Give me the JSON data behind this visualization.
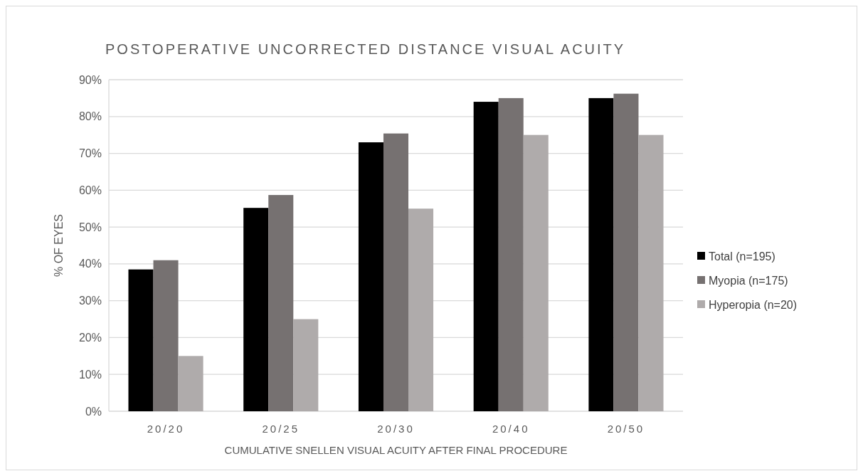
{
  "chart_data": {
    "type": "bar",
    "title": "POSTOPERATIVE UNCORRECTED DISTANCE VISUAL ACUITY",
    "xlabel": "CUMULATIVE SNELLEN VISUAL ACUITY AFTER FINAL PROCEDURE",
    "ylabel": "% OF EYES",
    "categories": [
      "20/20",
      "20/25",
      "20/30",
      "20/40",
      "20/50"
    ],
    "series": [
      {
        "name": "Total (n=195)",
        "color": "#000000",
        "values": [
          38.5,
          55.2,
          73,
          84,
          85
        ]
      },
      {
        "name": "Myopia (n=175)",
        "color": "#767171",
        "values": [
          41,
          58.7,
          75.4,
          85,
          86.2
        ]
      },
      {
        "name": "Hyperopia (n=20)",
        "color": "#afabab",
        "values": [
          15,
          25,
          55,
          75,
          75
        ]
      }
    ],
    "ylim": [
      0,
      90
    ],
    "yticks": [
      {
        "value": 0,
        "label": "0%"
      },
      {
        "value": 10,
        "label": "10%"
      },
      {
        "value": 20,
        "label": "20%"
      },
      {
        "value": 30,
        "label": "30%"
      },
      {
        "value": 40,
        "label": "40%"
      },
      {
        "value": 50,
        "label": "50%"
      },
      {
        "value": 60,
        "label": "60%"
      },
      {
        "value": 70,
        "label": "70%"
      },
      {
        "value": 80,
        "label": "80%"
      },
      {
        "value": 90,
        "label": "90%"
      }
    ],
    "grid": "y",
    "legend": "right"
  }
}
